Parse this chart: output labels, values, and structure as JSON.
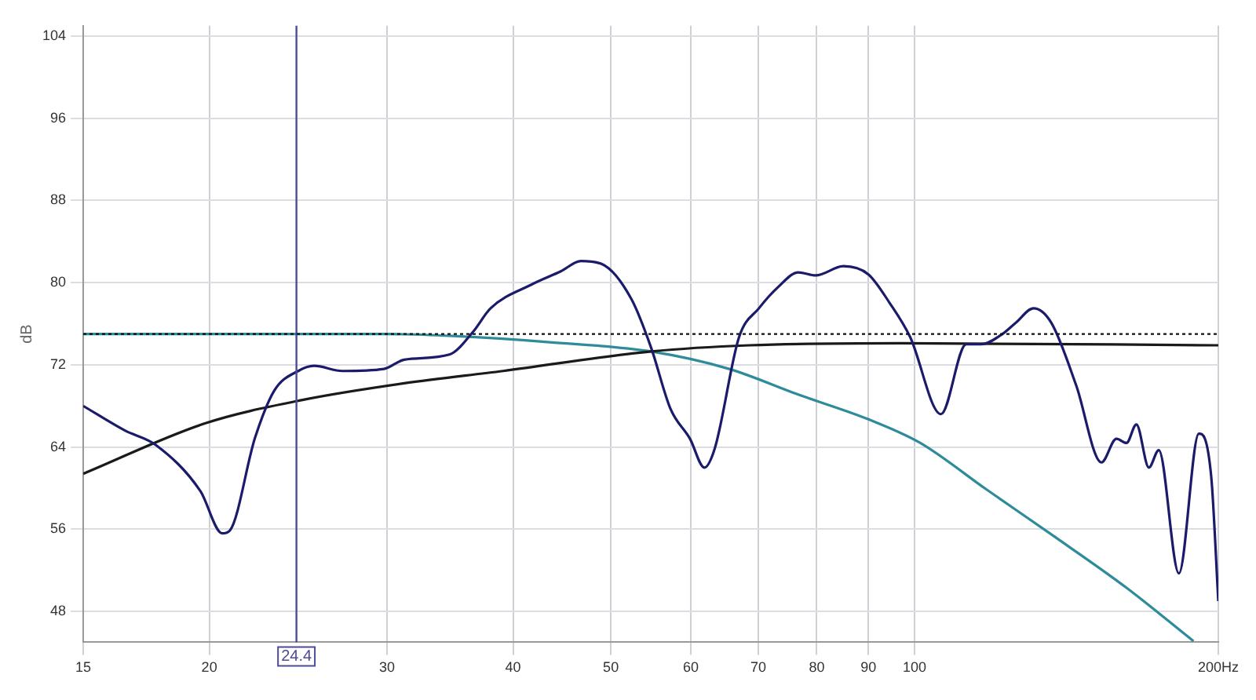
{
  "chart_data": {
    "type": "line",
    "ylabel": "dB",
    "log": "x",
    "grid": true,
    "legend": false,
    "marker": "none",
    "line_style": "solid",
    "xlim": [
      15,
      200
    ],
    "ylim": [
      45,
      105
    ],
    "xticks": [
      15,
      20,
      30,
      40,
      50,
      60,
      70,
      80,
      90,
      100,
      {
        "value": 200,
        "label": "200Hz"
      }
    ],
    "yticks": [
      48,
      56,
      64,
      72,
      80,
      88,
      96,
      104
    ],
    "ref_lines": [
      {
        "axis": "x",
        "value": 24.4,
        "label": "24.4",
        "color": "#4b4b9a",
        "line_style": "solid"
      },
      {
        "axis": "y",
        "value": 75,
        "label": null,
        "color": "#111111",
        "line_style": "dotted"
      }
    ],
    "series": [
      {
        "color": "#1b1b6b",
        "x": [
          15,
          16.5,
          17.7,
          19.6,
          20.6,
          20.97,
          22.2,
          23.2,
          24.5,
          25.4,
          27.1,
          29.8,
          31.2,
          34.6,
          36.5,
          38.0,
          41.7,
          44.6,
          46.7,
          49.0,
          52.4,
          54.8,
          57.3,
          59.9,
          61.9,
          63.4,
          67.0,
          70.1,
          73.3,
          76.7,
          79.8,
          85.0,
          90.0,
          94.5,
          99.0,
          106.2,
          112.5,
          116.4,
          121.8,
          126.0,
          131.2,
          136.6,
          144.6,
          153.2,
          158.5,
          162.2,
          165.9,
          170.7,
          174.6,
          182.8,
          191.3,
          196.8,
          200
        ],
        "values": [
          68.0,
          65.6,
          64.2,
          59.7,
          55.6,
          55.9,
          64.9,
          69.5,
          71.4,
          71.9,
          71.4,
          71.6,
          72.5,
          73.0,
          75.2,
          77.5,
          79.8,
          81.1,
          82.1,
          81.8,
          78.4,
          73.7,
          67.7,
          64.8,
          62.0,
          63.9,
          74.7,
          77.5,
          79.6,
          81.0,
          80.7,
          81.6,
          80.8,
          78.0,
          74.7,
          67.2,
          74.0,
          74.0,
          74.9,
          76.1,
          77.5,
          76.1,
          70.0,
          62.5,
          64.8,
          64.4,
          66.2,
          62.0,
          63.7,
          51.7,
          65.3,
          61.1,
          49.0
        ]
      },
      {
        "color": "#1a1a1a",
        "x": [
          15,
          19.8,
          24.8,
          31.2,
          39.1,
          54.8,
          68.6,
          96.8,
          200
        ],
        "values": [
          61.4,
          66.3,
          68.6,
          70.2,
          71.4,
          73.3,
          73.9,
          74.1,
          73.9
        ]
      },
      {
        "color": "#2e8b9a",
        "x": [
          15,
          30,
          34.9,
          43.5,
          54.8,
          65.5,
          76.7,
          90,
          101.3,
          117.7,
          136.6,
          162.2,
          189
        ],
        "values": [
          75.0,
          75.0,
          74.8,
          74.2,
          73.3,
          71.6,
          69.1,
          66.7,
          64.4,
          59.9,
          55.5,
          50.3,
          45.1
        ]
      }
    ]
  }
}
